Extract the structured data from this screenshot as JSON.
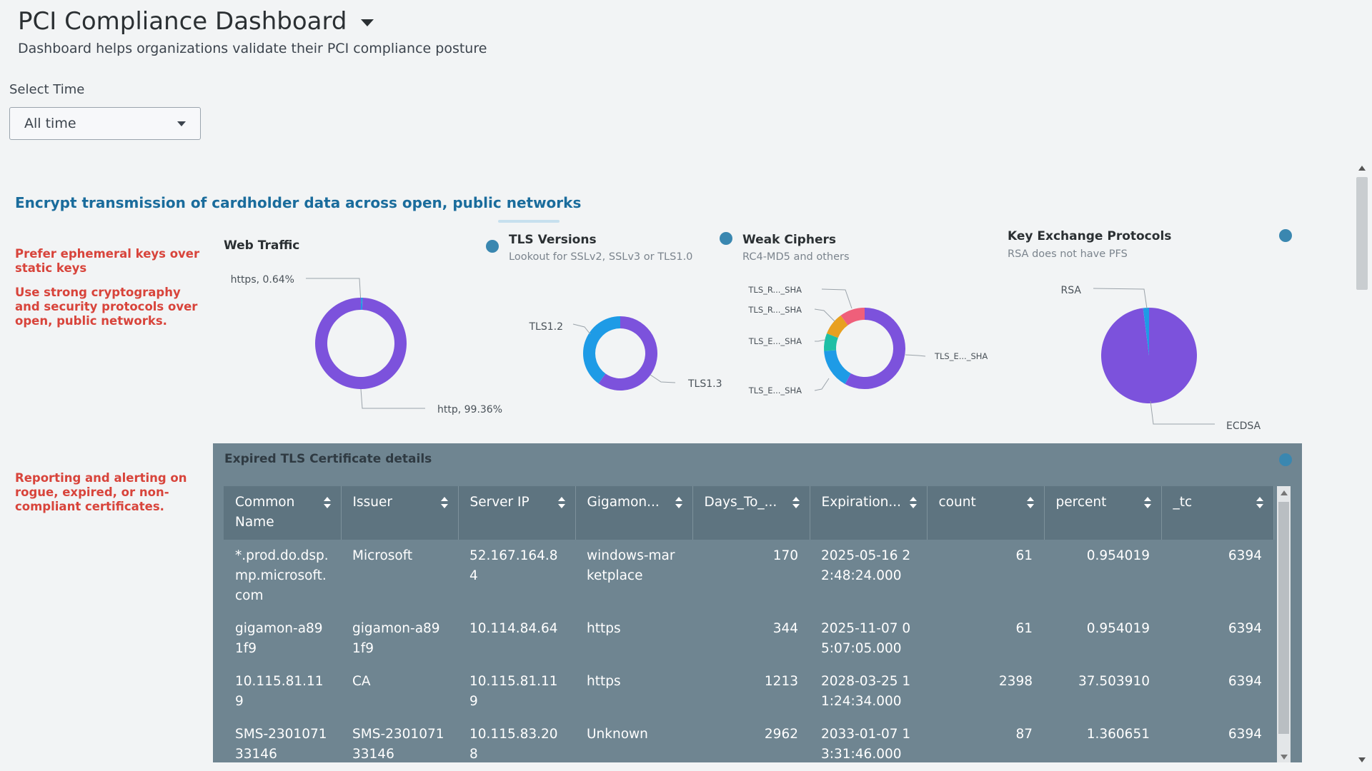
{
  "header": {
    "title": "PCI Compliance Dashboard",
    "subtitle": "Dashboard helps organizations validate their PCI compliance posture"
  },
  "time_input": {
    "label": "Select Time",
    "value": "All time"
  },
  "section": {
    "title": "Encrypt transmission of cardholder data across open, public networks"
  },
  "notes": {
    "ephemeral": "Prefer ephemeral keys over static keys",
    "cryptography": "Use strong cryptography and security protocols over open, public networks.",
    "certificates": "Reporting and alerting on rogue, expired, or non-compliant certificates."
  },
  "panels": {
    "web_traffic": {
      "title": "Web Traffic"
    },
    "tls_versions": {
      "title": "TLS Versions",
      "subtitle": "Lookout for SSLv2, SSLv3 or TLS1.0"
    },
    "weak_ciphers": {
      "title": "Weak Ciphers",
      "subtitle": "RC4-MD5 and others"
    },
    "key_exchange": {
      "title": "Key Exchange Protocols",
      "subtitle": "RSA does not have PFS"
    }
  },
  "chart_data": [
    {
      "type": "pie",
      "title": "Web Traffic",
      "donut": true,
      "slices": [
        {
          "label": "https, 0.64%",
          "value": 0.64,
          "color": "#1e9be6"
        },
        {
          "label": "http, 99.36%",
          "value": 99.36,
          "color": "#7c52dc"
        }
      ]
    },
    {
      "type": "pie",
      "title": "TLS Versions",
      "donut": true,
      "slices": [
        {
          "label": "TLS1.3",
          "value": 60,
          "color": "#7c52dc"
        },
        {
          "label": "TLS1.2",
          "value": 40,
          "color": "#1e9be6"
        }
      ]
    },
    {
      "type": "pie",
      "title": "Weak Ciphers",
      "donut": true,
      "slices": [
        {
          "label": "TLS_E..._SHA",
          "value": 58,
          "color": "#7c52dc"
        },
        {
          "label": "TLS_E..._SHA",
          "value": 16,
          "color": "#1e9be6"
        },
        {
          "label": "TLS_E..._SHA",
          "value": 7,
          "color": "#1ebfa5"
        },
        {
          "label": "TLS_R..._SHA",
          "value": 9,
          "color": "#e8a020"
        },
        {
          "label": "TLS_R..._SHA",
          "value": 10,
          "color": "#ef5f7a"
        }
      ]
    },
    {
      "type": "pie",
      "title": "Key Exchange Protocols",
      "donut": false,
      "slices": [
        {
          "label": "ECDSA",
          "value": 98,
          "color": "#7c52dc"
        },
        {
          "label": "RSA",
          "value": 2,
          "color": "#1e9be6"
        }
      ]
    }
  ],
  "table": {
    "title": "Expired TLS Certificate details",
    "columns": [
      "Common Name",
      "Issuer",
      "Server IP",
      "Gigamon...",
      "Days_To_...",
      "Expiration...",
      "count",
      "percent",
      "_tc"
    ],
    "rows": [
      [
        "*.prod.do.dsp.mp.microsoft.com",
        "Microsoft",
        "52.167.164.84",
        "windows-marketplace",
        "170",
        "2025-05-16 22:48:24.000",
        "61",
        "0.954019",
        "6394"
      ],
      [
        "gigamon-a891f9",
        "gigamon-a891f9",
        "10.114.84.64",
        "https",
        "344",
        "2025-11-07 05:07:05.000",
        "61",
        "0.954019",
        "6394"
      ],
      [
        "10.115.81.119",
        "CA",
        "10.115.81.119",
        "https",
        "1213",
        "2028-03-25 11:24:34.000",
        "2398",
        "37.503910",
        "6394"
      ],
      [
        "SMS-230107133146",
        "SMS-230107133146",
        "10.115.83.208",
        "Unknown",
        "2962",
        "2033-01-07 13:31:46.000",
        "87",
        "1.360651",
        "6394"
      ]
    ]
  }
}
